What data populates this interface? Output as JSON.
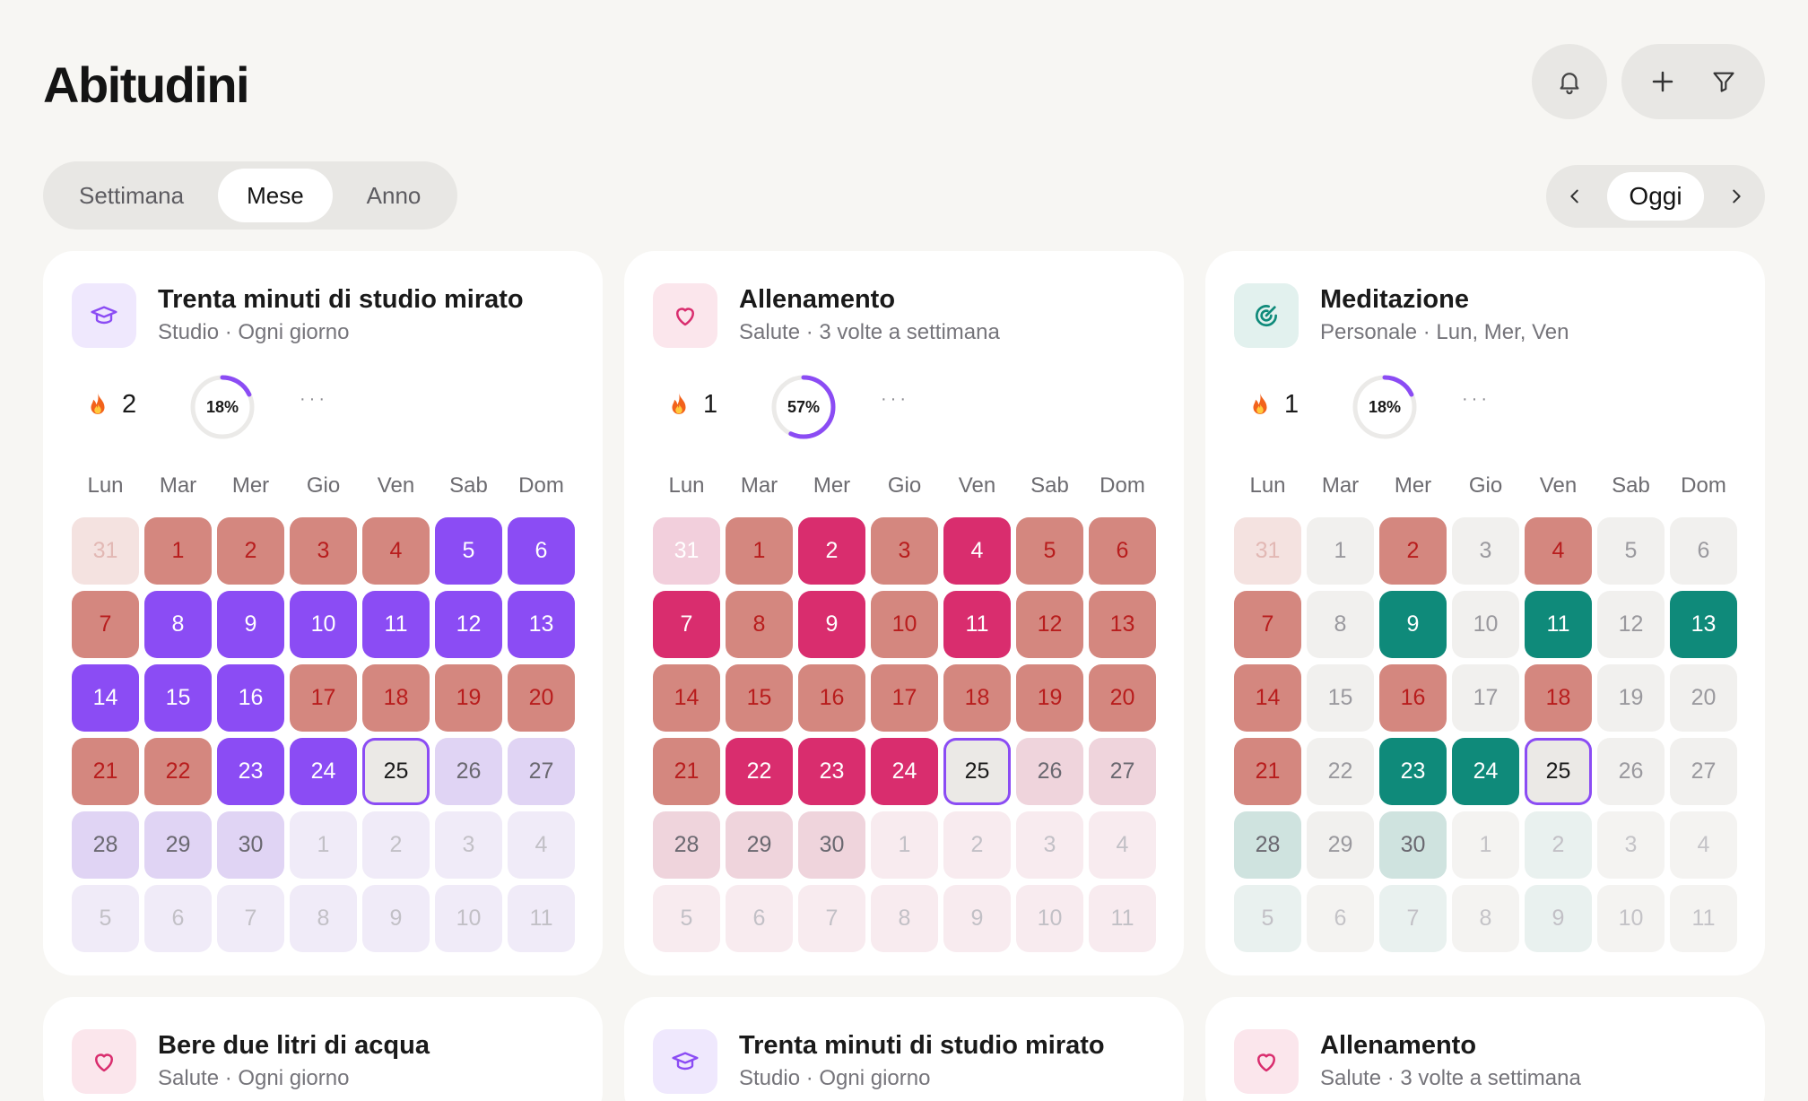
{
  "header": {
    "title": "Abitudini",
    "bell_icon": "bell-icon",
    "add_icon": "plus-icon",
    "filter_icon": "filter-icon"
  },
  "view_tabs": [
    {
      "label": "Settimana",
      "active": false
    },
    {
      "label": "Mese",
      "active": true
    },
    {
      "label": "Anno",
      "active": false
    }
  ],
  "date_nav": {
    "today_label": "Oggi",
    "prev_icon": "chevron-left-icon",
    "next_icon": "chevron-right-icon"
  },
  "weekdays": [
    "Lun",
    "Mar",
    "Mer",
    "Gio",
    "Ven",
    "Sab",
    "Dom"
  ],
  "colors": {
    "violet": "#8b4cf4",
    "pink": "#d92d6e",
    "teal": "#0f8a7a",
    "missed": "#d4877f",
    "missed_text": "#b81d1d",
    "today_border": "#8b4cf4",
    "background": "#f7f6f3"
  },
  "habits": [
    {
      "title": "Trenta minuti di studio mirato",
      "subtitle": "Studio · Ogni giorno",
      "icon": "graduation-cap-icon",
      "icon_color": "#8b4cf4",
      "icon_bg": "#efe8fd",
      "accent": "#8b4cf4",
      "tint": "#e0d4f4",
      "tint_out": "#f0ebf8",
      "streak": "2",
      "progress_label": "18%",
      "progress": 0.18,
      "days": [
        {
          "n": "31",
          "s": "missed_out"
        },
        {
          "n": "1",
          "s": "missed"
        },
        {
          "n": "2",
          "s": "missed"
        },
        {
          "n": "3",
          "s": "missed"
        },
        {
          "n": "4",
          "s": "missed"
        },
        {
          "n": "5",
          "s": "done"
        },
        {
          "n": "6",
          "s": "done"
        },
        {
          "n": "7",
          "s": "missed"
        },
        {
          "n": "8",
          "s": "done"
        },
        {
          "n": "9",
          "s": "done"
        },
        {
          "n": "10",
          "s": "done"
        },
        {
          "n": "11",
          "s": "done"
        },
        {
          "n": "12",
          "s": "done"
        },
        {
          "n": "13",
          "s": "done"
        },
        {
          "n": "14",
          "s": "done"
        },
        {
          "n": "15",
          "s": "done"
        },
        {
          "n": "16",
          "s": "done"
        },
        {
          "n": "17",
          "s": "missed"
        },
        {
          "n": "18",
          "s": "missed"
        },
        {
          "n": "19",
          "s": "missed"
        },
        {
          "n": "20",
          "s": "missed"
        },
        {
          "n": "21",
          "s": "missed"
        },
        {
          "n": "22",
          "s": "missed"
        },
        {
          "n": "23",
          "s": "done"
        },
        {
          "n": "24",
          "s": "done"
        },
        {
          "n": "25",
          "s": "today"
        },
        {
          "n": "26",
          "s": "future_tint"
        },
        {
          "n": "27",
          "s": "future_tint"
        },
        {
          "n": "28",
          "s": "future_tint"
        },
        {
          "n": "29",
          "s": "future_tint"
        },
        {
          "n": "30",
          "s": "future_tint"
        },
        {
          "n": "1",
          "s": "out"
        },
        {
          "n": "2",
          "s": "out"
        },
        {
          "n": "3",
          "s": "out"
        },
        {
          "n": "4",
          "s": "out"
        },
        {
          "n": "5",
          "s": "out"
        },
        {
          "n": "6",
          "s": "out"
        },
        {
          "n": "7",
          "s": "out"
        },
        {
          "n": "8",
          "s": "out"
        },
        {
          "n": "9",
          "s": "out"
        },
        {
          "n": "10",
          "s": "out"
        },
        {
          "n": "11",
          "s": "out"
        }
      ]
    },
    {
      "title": "Allenamento",
      "subtitle": "Salute · 3 volte a settimana",
      "icon": "heart-icon",
      "icon_color": "#d92d6e",
      "icon_bg": "#fbe6ec",
      "accent": "#d92d6e",
      "tint": "#efd4dc",
      "tint_out": "#f8ebef",
      "streak": "1",
      "progress_label": "57%",
      "progress": 0.57,
      "days": [
        {
          "n": "31",
          "s": "tint_out_strong"
        },
        {
          "n": "1",
          "s": "missed"
        },
        {
          "n": "2",
          "s": "done"
        },
        {
          "n": "3",
          "s": "missed"
        },
        {
          "n": "4",
          "s": "done"
        },
        {
          "n": "5",
          "s": "missed"
        },
        {
          "n": "6",
          "s": "missed"
        },
        {
          "n": "7",
          "s": "done"
        },
        {
          "n": "8",
          "s": "missed"
        },
        {
          "n": "9",
          "s": "done"
        },
        {
          "n": "10",
          "s": "missed"
        },
        {
          "n": "11",
          "s": "done"
        },
        {
          "n": "12",
          "s": "missed"
        },
        {
          "n": "13",
          "s": "missed"
        },
        {
          "n": "14",
          "s": "missed"
        },
        {
          "n": "15",
          "s": "missed"
        },
        {
          "n": "16",
          "s": "missed"
        },
        {
          "n": "17",
          "s": "missed"
        },
        {
          "n": "18",
          "s": "missed"
        },
        {
          "n": "19",
          "s": "missed"
        },
        {
          "n": "20",
          "s": "missed"
        },
        {
          "n": "21",
          "s": "missed"
        },
        {
          "n": "22",
          "s": "done"
        },
        {
          "n": "23",
          "s": "done"
        },
        {
          "n": "24",
          "s": "done"
        },
        {
          "n": "25",
          "s": "today"
        },
        {
          "n": "26",
          "s": "future_tint"
        },
        {
          "n": "27",
          "s": "future_tint"
        },
        {
          "n": "28",
          "s": "future_tint"
        },
        {
          "n": "29",
          "s": "future_tint"
        },
        {
          "n": "30",
          "s": "future_tint"
        },
        {
          "n": "1",
          "s": "out"
        },
        {
          "n": "2",
          "s": "out"
        },
        {
          "n": "3",
          "s": "out"
        },
        {
          "n": "4",
          "s": "out"
        },
        {
          "n": "5",
          "s": "out"
        },
        {
          "n": "6",
          "s": "out"
        },
        {
          "n": "7",
          "s": "out"
        },
        {
          "n": "8",
          "s": "out"
        },
        {
          "n": "9",
          "s": "out"
        },
        {
          "n": "10",
          "s": "out"
        },
        {
          "n": "11",
          "s": "out"
        }
      ]
    },
    {
      "title": "Meditazione",
      "subtitle": "Personale · Lun, Mer, Ven",
      "icon": "target-icon",
      "icon_color": "#0f8a7a",
      "icon_bg": "#e2f1ee",
      "accent": "#0f8a7a",
      "tint": "#cfe3df",
      "tint_out": "#e9f1ef",
      "streak": "1",
      "progress_label": "18%",
      "progress": 0.18,
      "days": [
        {
          "n": "31",
          "s": "missed_out"
        },
        {
          "n": "1",
          "s": "off"
        },
        {
          "n": "2",
          "s": "missed"
        },
        {
          "n": "3",
          "s": "off"
        },
        {
          "n": "4",
          "s": "missed"
        },
        {
          "n": "5",
          "s": "off"
        },
        {
          "n": "6",
          "s": "off"
        },
        {
          "n": "7",
          "s": "missed"
        },
        {
          "n": "8",
          "s": "off"
        },
        {
          "n": "9",
          "s": "done"
        },
        {
          "n": "10",
          "s": "off"
        },
        {
          "n": "11",
          "s": "done"
        },
        {
          "n": "12",
          "s": "off"
        },
        {
          "n": "13",
          "s": "done"
        },
        {
          "n": "14",
          "s": "missed"
        },
        {
          "n": "15",
          "s": "off"
        },
        {
          "n": "16",
          "s": "missed"
        },
        {
          "n": "17",
          "s": "off"
        },
        {
          "n": "18",
          "s": "missed"
        },
        {
          "n": "19",
          "s": "off"
        },
        {
          "n": "20",
          "s": "off"
        },
        {
          "n": "21",
          "s": "missed"
        },
        {
          "n": "22",
          "s": "off"
        },
        {
          "n": "23",
          "s": "done"
        },
        {
          "n": "24",
          "s": "done"
        },
        {
          "n": "25",
          "s": "today"
        },
        {
          "n": "26",
          "s": "off"
        },
        {
          "n": "27",
          "s": "off"
        },
        {
          "n": "28",
          "s": "future_tint"
        },
        {
          "n": "29",
          "s": "off"
        },
        {
          "n": "30",
          "s": "future_tint"
        },
        {
          "n": "1",
          "s": "off_out"
        },
        {
          "n": "2",
          "s": "out"
        },
        {
          "n": "3",
          "s": "off_out"
        },
        {
          "n": "4",
          "s": "off_out"
        },
        {
          "n": "5",
          "s": "out"
        },
        {
          "n": "6",
          "s": "off_out"
        },
        {
          "n": "7",
          "s": "out"
        },
        {
          "n": "8",
          "s": "off_out"
        },
        {
          "n": "9",
          "s": "out"
        },
        {
          "n": "10",
          "s": "off_out"
        },
        {
          "n": "11",
          "s": "off_out"
        }
      ]
    },
    {
      "title": "Bere due litri di acqua",
      "subtitle": "Salute · Ogni giorno",
      "icon": "heart-icon",
      "icon_color": "#d92d6e",
      "icon_bg": "#fbe6ec"
    },
    {
      "title": "Trenta minuti di studio mirato",
      "subtitle": "Studio · Ogni giorno",
      "icon": "graduation-cap-icon",
      "icon_color": "#8b4cf4",
      "icon_bg": "#efe8fd"
    },
    {
      "title": "Allenamento",
      "subtitle": "Salute · 3 volte a settimana",
      "icon": "heart-icon",
      "icon_color": "#d92d6e",
      "icon_bg": "#fbe6ec"
    }
  ]
}
